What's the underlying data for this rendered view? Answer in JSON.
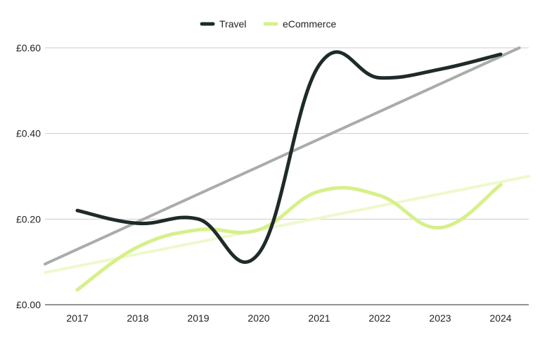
{
  "chart_data": {
    "type": "line",
    "title": "",
    "xlabel": "",
    "ylabel": "",
    "categories": [
      "2017",
      "2018",
      "2019",
      "2020",
      "2021",
      "2022",
      "2023",
      "2024"
    ],
    "y_ticks": [
      "£0.00",
      "£0.20",
      "£0.40",
      "£0.60"
    ],
    "ylim": [
      0,
      0.6
    ],
    "grid": true,
    "legend_position": "top-center",
    "series": [
      {
        "name": "Travel",
        "color": "#1f2a2a",
        "values": [
          0.22,
          0.19,
          0.2,
          0.12,
          0.56,
          0.53,
          0.55,
          0.585
        ],
        "trendline": {
          "start": 0.095,
          "end": 0.61,
          "color": "#a8acab"
        }
      },
      {
        "name": "eCommerce",
        "color": "#d6f08a",
        "values": [
          0.035,
          0.135,
          0.175,
          0.175,
          0.265,
          0.255,
          0.18,
          0.28
        ],
        "trendline": {
          "start": 0.075,
          "end": 0.3,
          "color": "#eef9cc"
        }
      }
    ]
  }
}
